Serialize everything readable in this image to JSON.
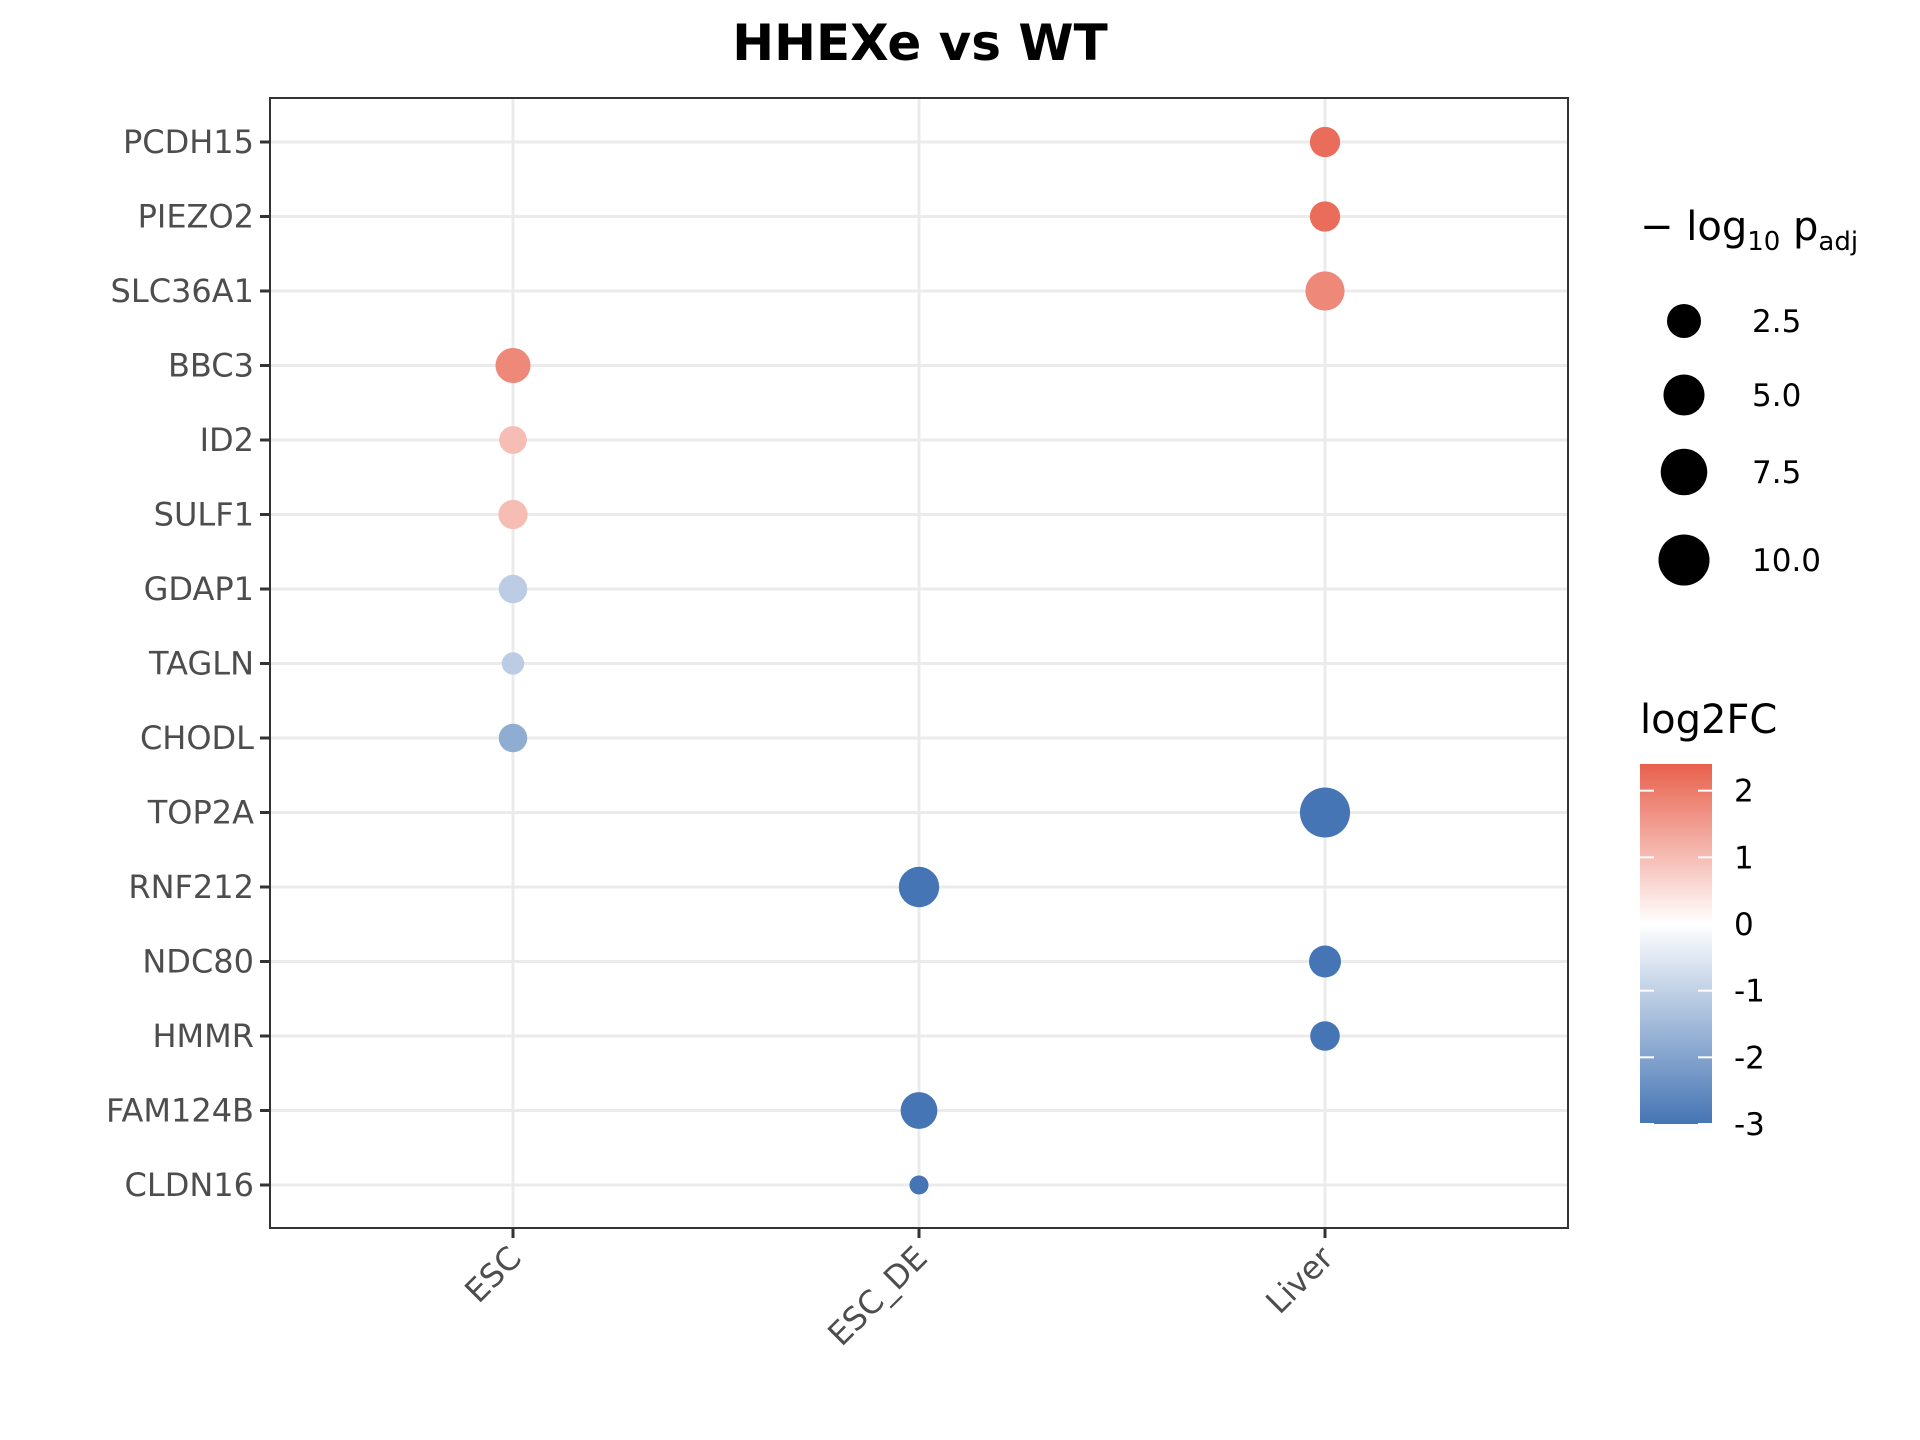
{
  "chart_data": {
    "type": "scatter",
    "title": "HHEXe vs WT",
    "xlabel": "",
    "ylabel": "",
    "x_categories": [
      "ESC",
      "ESC_DE",
      "Liver"
    ],
    "y_categories": [
      "PCDH15",
      "PIEZO2",
      "SLC36A1",
      "BBC3",
      "ID2",
      "SULF1",
      "GDAP1",
      "TAGLN",
      "CHODL",
      "TOP2A",
      "RNF212",
      "NDC80",
      "HMMR",
      "FAM124B",
      "CLDN16"
    ],
    "points": [
      {
        "gene": "PCDH15",
        "group": "Liver",
        "log2FC": 2.2,
        "neglog10padj": 3.5
      },
      {
        "gene": "PIEZO2",
        "group": "Liver",
        "log2FC": 2.2,
        "neglog10padj": 3.5
      },
      {
        "gene": "SLC36A1",
        "group": "Liver",
        "log2FC": 1.8,
        "neglog10padj": 6.5
      },
      {
        "gene": "BBC3",
        "group": "ESC",
        "log2FC": 1.8,
        "neglog10padj": 5.0
      },
      {
        "gene": "ID2",
        "group": "ESC",
        "log2FC": 1.0,
        "neglog10padj": 2.8
      },
      {
        "gene": "SULF1",
        "group": "ESC",
        "log2FC": 1.0,
        "neglog10padj": 3.2
      },
      {
        "gene": "GDAP1",
        "group": "ESC",
        "log2FC": -1.1,
        "neglog10padj": 3.0
      },
      {
        "gene": "TAGLN",
        "group": "ESC",
        "log2FC": -1.1,
        "neglog10padj": 1.6
      },
      {
        "gene": "CHODL",
        "group": "ESC",
        "log2FC": -1.8,
        "neglog10padj": 3.0
      },
      {
        "gene": "TOP2A",
        "group": "Liver",
        "log2FC": -3.0,
        "neglog10padj": 11.5
      },
      {
        "gene": "RNF212",
        "group": "ESC_DE",
        "log2FC": -3.0,
        "neglog10padj": 7.0
      },
      {
        "gene": "NDC80",
        "group": "Liver",
        "log2FC": -3.0,
        "neglog10padj": 4.0
      },
      {
        "gene": "HMMR",
        "group": "Liver",
        "log2FC": -3.0,
        "neglog10padj": 3.3
      },
      {
        "gene": "FAM124B",
        "group": "ESC_DE",
        "log2FC": -3.0,
        "neglog10padj": 5.6
      },
      {
        "gene": "CLDN16",
        "group": "ESC_DE",
        "log2FC": -3.0,
        "neglog10padj": 1.0
      }
    ],
    "size_legend": {
      "title_prefix": "− log",
      "title_sub": "10",
      "title_mid": " p",
      "title_sub2": "adj",
      "values": [
        2.5,
        5.0,
        7.5,
        10.0
      ],
      "labels": [
        "2.5",
        "5.0",
        "7.5",
        "10.0"
      ]
    },
    "color_legend": {
      "title": "log2FC",
      "ticks": [
        2,
        1,
        0,
        -1,
        -2,
        -3
      ],
      "tick_labels": [
        "2",
        "1",
        "0",
        "-1",
        "-2",
        "-3"
      ],
      "limits": [
        -3.0,
        2.4
      ],
      "colors": {
        "high": "#e8604c",
        "mid": "#ffffff",
        "low": "#4575b4"
      }
    },
    "grid": true,
    "legend_position": "right"
  }
}
